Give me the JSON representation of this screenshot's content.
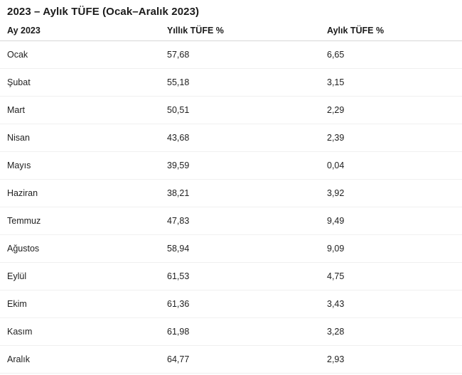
{
  "page": {
    "title": "2023 – Aylık TÜFE (Ocak–Aralık 2023)"
  },
  "table": {
    "columns": [
      "Ay 2023",
      "Yıllık TÜFE %",
      "Aylık TÜFE %"
    ],
    "rows": [
      [
        "Ocak",
        "57,68",
        "6,65"
      ],
      [
        "Şubat",
        "55,18",
        "3,15"
      ],
      [
        "Mart",
        "50,51",
        "2,29"
      ],
      [
        "Nisan",
        "43,68",
        "2,39"
      ],
      [
        "Mayıs",
        "39,59",
        "0,04"
      ],
      [
        "Haziran",
        "38,21",
        "3,92"
      ],
      [
        "Temmuz",
        "47,83",
        "9,49"
      ],
      [
        "Ağustos",
        "58,94",
        "9,09"
      ],
      [
        "Eylül",
        "61,53",
        "4,75"
      ],
      [
        "Ekim",
        "61,36",
        "3,43"
      ],
      [
        "Kasım",
        "61,98",
        "3,28"
      ],
      [
        "Aralık",
        "64,77",
        "2,93"
      ]
    ]
  },
  "chart_data": {
    "type": "table",
    "title": "2023 – Aylık TÜFE (Ocak–Aralık 2023)",
    "columns": [
      "Ay 2023",
      "Yıllık TÜFE %",
      "Aylık TÜFE %"
    ],
    "categories": [
      "Ocak",
      "Şubat",
      "Mart",
      "Nisan",
      "Mayıs",
      "Haziran",
      "Temmuz",
      "Ağustos",
      "Eylül",
      "Ekim",
      "Kasım",
      "Aralık"
    ],
    "series": [
      {
        "name": "Yıllık TÜFE %",
        "values": [
          57.68,
          55.18,
          50.51,
          43.68,
          39.59,
          38.21,
          47.83,
          58.94,
          61.53,
          61.36,
          61.98,
          64.77
        ]
      },
      {
        "name": "Aylık TÜFE %",
        "values": [
          6.65,
          3.15,
          2.29,
          2.39,
          0.04,
          3.92,
          9.49,
          9.09,
          4.75,
          3.43,
          3.28,
          2.93
        ]
      }
    ],
    "decimal_separator": ","
  },
  "colors": {
    "background": "#ffffff",
    "title_text": "#1b1b1b",
    "cell_text": "#212121",
    "header_divider": "#d6d6d6",
    "row_divider": "#f0f0f0"
  }
}
